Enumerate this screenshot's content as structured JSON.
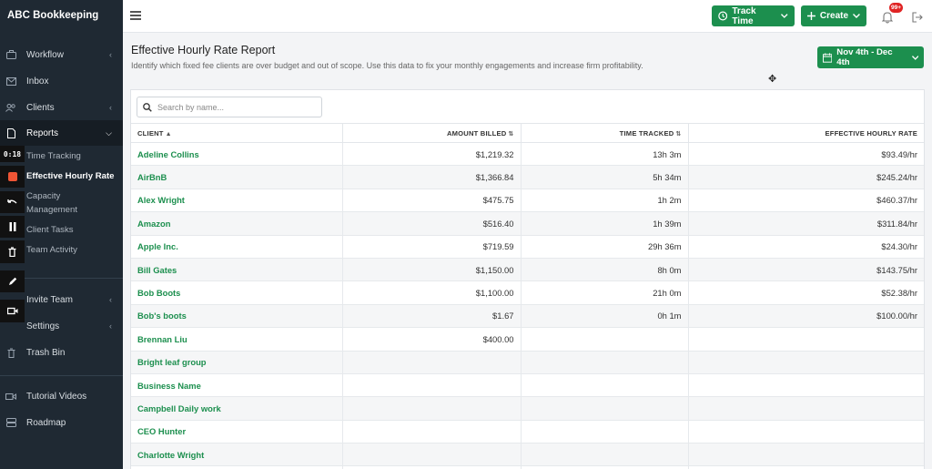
{
  "app": {
    "brand": "ABC Bookkeeping"
  },
  "sidebar": {
    "items": [
      {
        "label": "Workflow",
        "icon": "briefcase-icon",
        "has_chevron": true
      },
      {
        "label": "Inbox",
        "icon": "mail-icon",
        "has_chevron": false
      },
      {
        "label": "Clients",
        "icon": "users-icon",
        "has_chevron": true
      },
      {
        "label": "Reports",
        "icon": "file-icon",
        "has_chevron": true
      },
      {
        "label": "Invite Team",
        "icon": "user-plus-icon",
        "has_chevron": true
      },
      {
        "label": "Settings",
        "icon": "gear-icon",
        "has_chevron": true
      },
      {
        "label": "Trash Bin",
        "icon": "trash-icon",
        "has_chevron": false
      },
      {
        "label": "Tutorial Videos",
        "icon": "video-icon",
        "has_chevron": false
      },
      {
        "label": "Roadmap",
        "icon": "map-icon",
        "has_chevron": false
      }
    ],
    "reports_sub": [
      {
        "label": "Time Tracking"
      },
      {
        "label": "Effective Hourly Rate"
      },
      {
        "label": "Capacity"
      },
      {
        "label": "Management"
      },
      {
        "label": "Client Tasks"
      },
      {
        "label": "Team Activity"
      }
    ]
  },
  "recorder": {
    "time": "0:18"
  },
  "topbar": {
    "track_time": "Track Time",
    "create": "Create",
    "notifications_badge": "99+"
  },
  "header": {
    "title": "Effective Hourly Rate Report",
    "subtitle": "Identify which fixed fee clients are over budget and out of scope. Use this data to fix your monthly engagements and increase firm profitability.",
    "date_range": "Nov 4th - Dec 4th"
  },
  "search": {
    "placeholder": "Search by name..."
  },
  "table": {
    "columns": [
      "Client",
      "Amount Billed",
      "Time Tracked",
      "Effective Hourly Rate"
    ],
    "rows": [
      [
        "Adeline Collins",
        "$1,219.32",
        "13h 3m",
        "$93.49/hr"
      ],
      [
        "AirBnB",
        "$1,366.84",
        "5h 34m",
        "$245.24/hr"
      ],
      [
        "Alex Wright",
        "$475.75",
        "1h 2m",
        "$460.37/hr"
      ],
      [
        "Amazon",
        "$516.40",
        "1h 39m",
        "$311.84/hr"
      ],
      [
        "Apple Inc.",
        "$719.59",
        "29h 36m",
        "$24.30/hr"
      ],
      [
        "Bill Gates",
        "$1,150.00",
        "8h 0m",
        "$143.75/hr"
      ],
      [
        "Bob Boots",
        "$1,100.00",
        "21h 0m",
        "$52.38/hr"
      ],
      [
        "Bob's boots",
        "$1.67",
        "0h 1m",
        "$100.00/hr"
      ],
      [
        "Brennan Liu",
        "$400.00",
        "",
        ""
      ],
      [
        "Bright leaf group",
        "",
        "",
        ""
      ],
      [
        "Business Name",
        "",
        "",
        ""
      ],
      [
        "Campbell Daily work",
        "",
        "",
        ""
      ],
      [
        "CEO Hunter",
        "",
        "",
        ""
      ],
      [
        "Charlotte Wright",
        "",
        "",
        ""
      ],
      [
        "",
        "",
        "",
        ""
      ]
    ]
  },
  "colors": {
    "accent": "#1c8f4e",
    "sidebar": "#1f2933",
    "badge": "#e02424"
  }
}
